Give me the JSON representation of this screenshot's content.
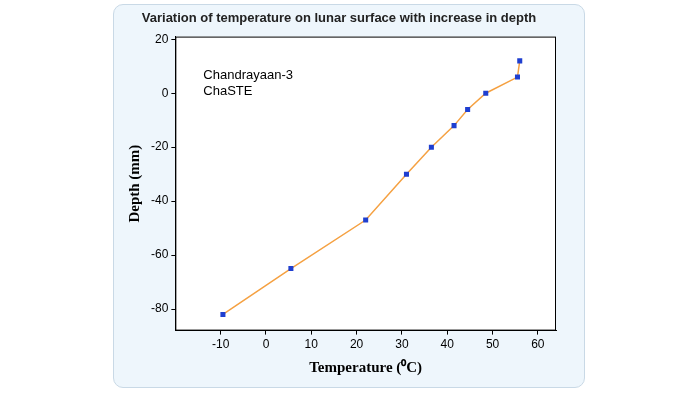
{
  "chart_data": {
    "type": "line",
    "title": "Variation of temperature on lunar surface with increase in depth",
    "annotations": [
      "Chandrayaan-3",
      "ChaSTE"
    ],
    "x_label": "Temperature (⁰C)",
    "y_label": "Depth (mm)",
    "x": [
      -9.5,
      5.5,
      22,
      31,
      36.5,
      41.5,
      44.5,
      48.5,
      55.5,
      56
    ],
    "values": [
      -82,
      -65,
      -47,
      -30,
      -20,
      -12,
      -6,
      0,
      6,
      12
    ],
    "color": "#f5a142",
    "marker": "square",
    "line_style": "solid",
    "xlim": [
      -20,
      64
    ],
    "xticks": [
      -10,
      0,
      10,
      20,
      30,
      40,
      50,
      60
    ],
    "ylim": [
      -88,
      21
    ],
    "yticks": [
      -80,
      -60,
      -40,
      -20,
      0,
      20
    ],
    "grid": false
  }
}
